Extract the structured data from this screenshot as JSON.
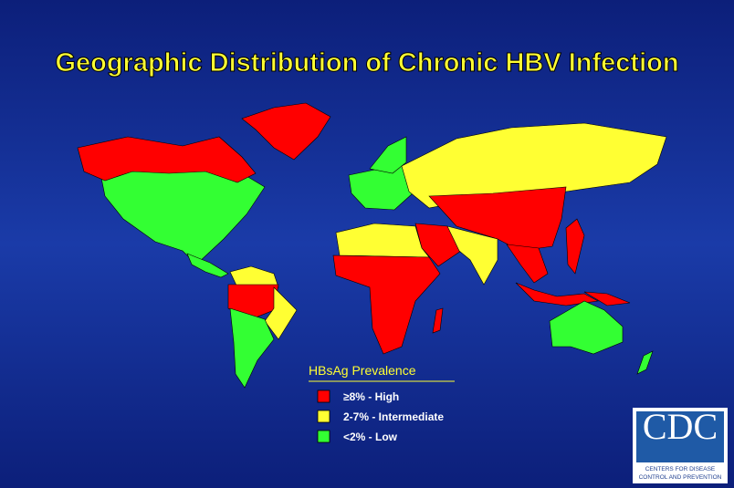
{
  "title": "Geographic Distribution of Chronic HBV Infection",
  "legend": {
    "title": "HBsAg Prevalence",
    "items": [
      {
        "label": "≥8% - High",
        "color": "#ff0000"
      },
      {
        "label": "2-7% - Intermediate",
        "color": "#ffff33"
      },
      {
        "label": "<2% - Low",
        "color": "#33ff33"
      }
    ]
  },
  "logo": {
    "text": "CDC",
    "line1": "CENTERS FOR DISEASE",
    "line2": "CONTROL AND PREVENTION"
  }
}
